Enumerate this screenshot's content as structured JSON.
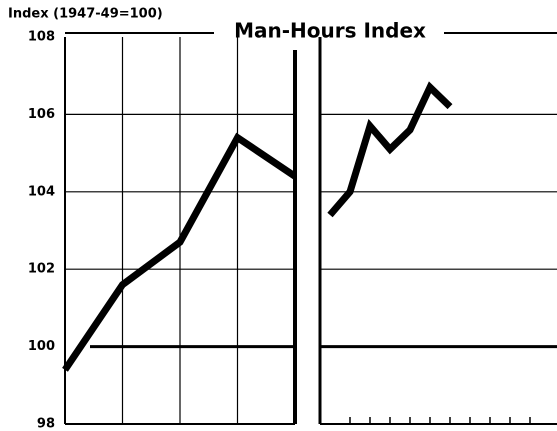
{
  "chart_data": [
    {
      "type": "line",
      "title": "Man-Hours Index",
      "ylabel": "Index (1947-49=100)",
      "categories": [
        null,
        null,
        null,
        null,
        null
      ],
      "values": [
        99.4,
        101.6,
        102.7,
        105.4,
        104.4
      ],
      "color": "#000000",
      "ylim": [
        98,
        108
      ],
      "yticks": [
        98,
        100,
        102,
        104,
        106,
        108
      ],
      "grid": true,
      "reference_line": 100
    },
    {
      "type": "line",
      "categories": [
        null,
        null,
        null,
        null,
        null,
        null,
        null,
        null,
        null,
        null,
        null
      ],
      "values": [
        103.4,
        104.0,
        105.7,
        105.1,
        105.6,
        106.7,
        106.2,
        null,
        null,
        null,
        null
      ],
      "color": "#000000",
      "ylim": [
        98,
        108
      ],
      "grid": true,
      "reference_line": 100
    }
  ]
}
